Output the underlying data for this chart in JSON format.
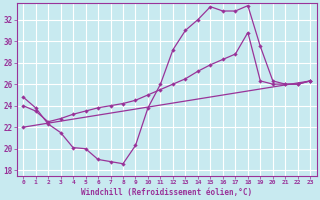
{
  "xlabel": "Windchill (Refroidissement éolien,°C)",
  "background_color": "#c8eaf0",
  "grid_color": "#ffffff",
  "line_color": "#993399",
  "xlim": [
    -0.5,
    23.5
  ],
  "ylim": [
    17.5,
    33.5
  ],
  "yticks": [
    18,
    20,
    22,
    24,
    26,
    28,
    30,
    32
  ],
  "xticks": [
    0,
    1,
    2,
    3,
    4,
    5,
    6,
    7,
    8,
    9,
    10,
    11,
    12,
    13,
    14,
    15,
    16,
    17,
    18,
    19,
    20,
    21,
    22,
    23
  ],
  "xtick_labels": [
    "0",
    "1",
    "2",
    "3",
    "4",
    "5",
    "6",
    "7",
    "8",
    "9",
    "10",
    "11",
    "12",
    "13",
    "14",
    "15",
    "16",
    "17",
    "18",
    "19",
    "20",
    "21",
    "22",
    "23"
  ],
  "line1_x": [
    0,
    1,
    2,
    3,
    4,
    5,
    6,
    7,
    8,
    9,
    10,
    11,
    12,
    13,
    14,
    15,
    16,
    17,
    18,
    19,
    20,
    21,
    22,
    23
  ],
  "line1_y": [
    24.8,
    23.8,
    22.3,
    21.5,
    20.1,
    20.0,
    19.0,
    18.8,
    18.6,
    20.3,
    23.8,
    26.0,
    29.2,
    31.0,
    32.0,
    33.2,
    32.8,
    32.8,
    33.3,
    29.5,
    26.3,
    26.0,
    26.0,
    26.3
  ],
  "line2_x": [
    0,
    1,
    2,
    3,
    4,
    5,
    6,
    7,
    8,
    9,
    10,
    11,
    12,
    13,
    14,
    15,
    16,
    17,
    18,
    19,
    20,
    21,
    22,
    23
  ],
  "line2_y": [
    24.0,
    23.5,
    22.5,
    22.8,
    23.2,
    23.5,
    23.8,
    24.0,
    24.2,
    24.5,
    25.0,
    25.5,
    26.0,
    26.5,
    27.2,
    27.8,
    28.3,
    28.8,
    30.8,
    26.3,
    26.0,
    26.0,
    26.0,
    26.3
  ],
  "line3_x": [
    0,
    23
  ],
  "line3_y": [
    22.0,
    26.3
  ]
}
